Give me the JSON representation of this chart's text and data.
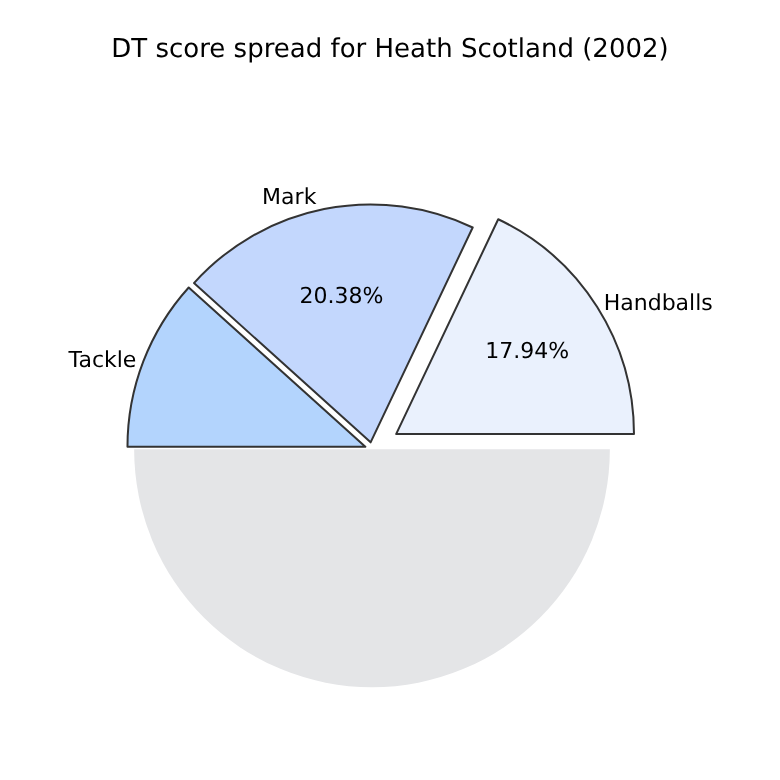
{
  "chart_data": {
    "type": "pie",
    "title": "DT score spread for Heath Scotland (2002)",
    "categories": [
      "Handballs",
      "Mark",
      "Tackle",
      null
    ],
    "values": [
      17.94,
      20.38,
      11.68,
      50.0
    ],
    "colors": [
      "#eaf1fd",
      "#c3d7fd",
      "#b3d4fd",
      "#e4e5e7"
    ],
    "value_labels": [
      "17.94%",
      "20.38%",
      null,
      null
    ],
    "legend": false
  }
}
